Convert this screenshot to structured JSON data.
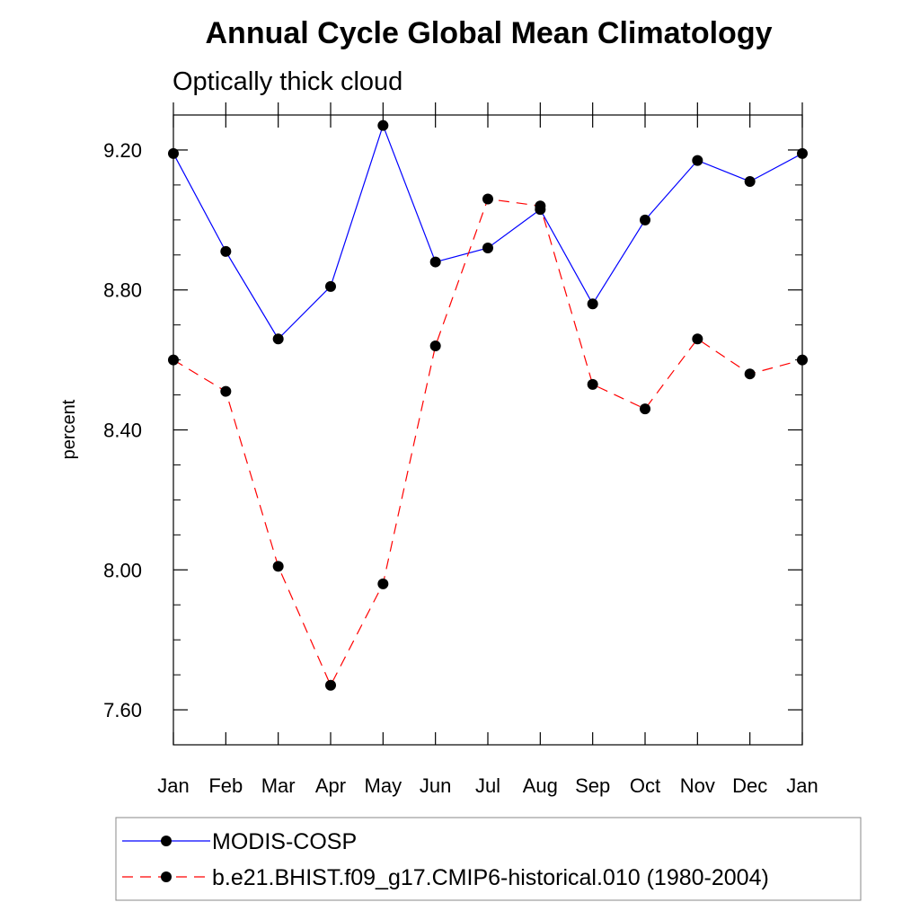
{
  "chart_data": {
    "type": "line",
    "title": "Annual Cycle Global Mean Climatology",
    "subtitle": "Optically thick cloud",
    "xlabel": "",
    "ylabel": "percent",
    "categories": [
      "Jan",
      "Feb",
      "Mar",
      "Apr",
      "May",
      "Jun",
      "Jul",
      "Aug",
      "Sep",
      "Oct",
      "Nov",
      "Dec",
      "Jan"
    ],
    "ylim": [
      7.5,
      9.3
    ],
    "yticks": [
      7.6,
      8.0,
      8.4,
      8.8,
      9.2
    ],
    "ytick_labels": [
      "7.60",
      "8.00",
      "8.40",
      "8.80",
      "9.20"
    ],
    "y_minor_step": 0.1,
    "series": [
      {
        "name": "MODIS-COSP",
        "color": "#0000ff",
        "dash": "solid",
        "values": [
          9.19,
          8.91,
          8.66,
          8.81,
          9.27,
          8.88,
          8.92,
          9.03,
          8.76,
          9.0,
          9.17,
          9.11,
          9.19
        ]
      },
      {
        "name": "b.e21.BHIST.f09_g17.CMIP6-historical.010 (1980-2004)",
        "color": "#ff0000",
        "dash": "dashed",
        "values": [
          8.6,
          8.51,
          8.01,
          7.67,
          7.96,
          8.64,
          9.06,
          9.04,
          8.53,
          8.46,
          8.66,
          8.56,
          8.6
        ]
      }
    ],
    "legend_position": "bottom"
  }
}
